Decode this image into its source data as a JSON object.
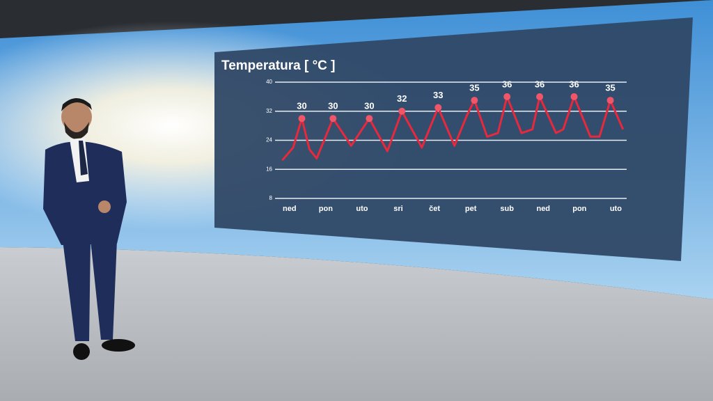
{
  "chart_data": {
    "type": "line",
    "title": "Temperatura [ °C ]",
    "categories": [
      "ned",
      "pon",
      "uto",
      "sri",
      "čet",
      "pet",
      "sub",
      "ned",
      "pon",
      "uto"
    ],
    "x": [
      -0.2,
      0.1,
      0.34,
      0.55,
      0.75,
      1.2,
      1.7,
      2.2,
      2.7,
      3.1,
      3.65,
      4.1,
      4.55,
      4.9,
      5.1,
      5.45,
      5.75,
      6.0,
      6.4,
      6.7,
      6.9,
      7.35,
      7.55,
      7.85,
      8.3,
      8.55,
      8.85,
      9.2
    ],
    "values": [
      18.5,
      22,
      30,
      21.5,
      19,
      30,
      22.5,
      30,
      21,
      32,
      22,
      33,
      22.5,
      31,
      35,
      25,
      26,
      36,
      26,
      27,
      36,
      26,
      27,
      36,
      25,
      25,
      35,
      27
    ],
    "color": "#e8283c",
    "maxima": {
      "x": [
        0.34,
        1.2,
        2.2,
        3.1,
        4.1,
        5.1,
        6.0,
        6.9,
        7.85,
        8.85
      ],
      "values": [
        30,
        30,
        30,
        32,
        33,
        35,
        36,
        36,
        36,
        35
      ],
      "color": "#f0566a"
    },
    "xlim": [
      -0.4,
      9.3
    ],
    "ylim": [
      8,
      40
    ],
    "yticks": [
      8,
      16,
      24,
      32,
      40
    ],
    "grid": true
  }
}
